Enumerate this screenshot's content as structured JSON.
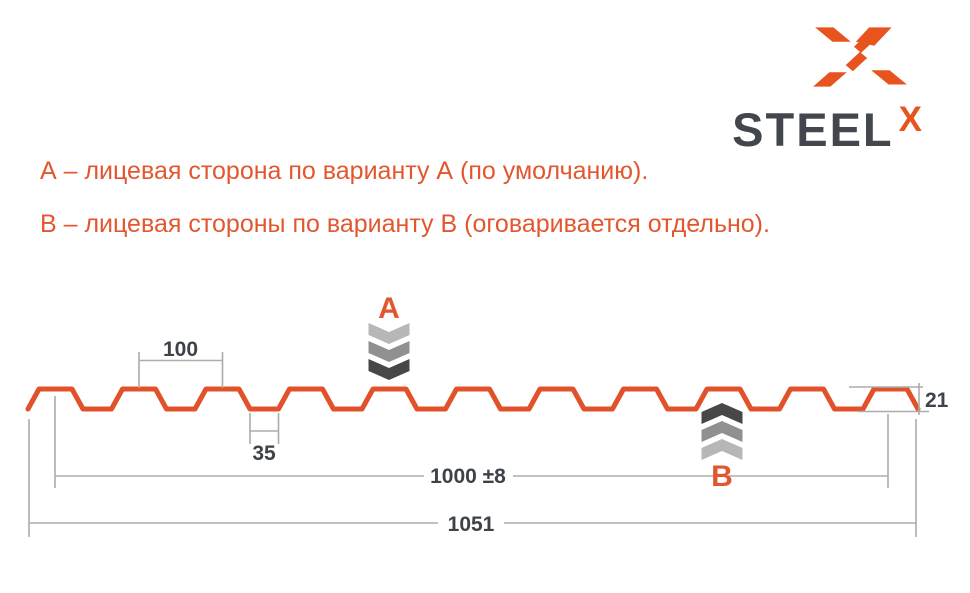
{
  "colors": {
    "brand_orange": "#E8541E",
    "note_orange": "#E2572F",
    "profile_line": "#E1522B",
    "steel_text": "#42474E",
    "dim_text": "#3E434A",
    "dim_line": "#ACACAC",
    "chevron_light": "#B6B7B8",
    "chevron_mid": "#8F9091",
    "chevron_dark": "#474749"
  },
  "logo": {
    "brand": "STEEL",
    "brand_sup": "X"
  },
  "notes": {
    "line_a": "А – лицевая сторона по варианту А (по умолчанию).",
    "line_b": "В – лицевая стороны по варианту В (оговаривается отдельно)."
  },
  "diagram": {
    "marker_a": "A",
    "marker_b": "B",
    "dimensions": {
      "rib_pitch": "100",
      "valley_width": "35",
      "profile_height": "21",
      "working_width": "1000 ±8",
      "overall_width": "1051"
    }
  }
}
